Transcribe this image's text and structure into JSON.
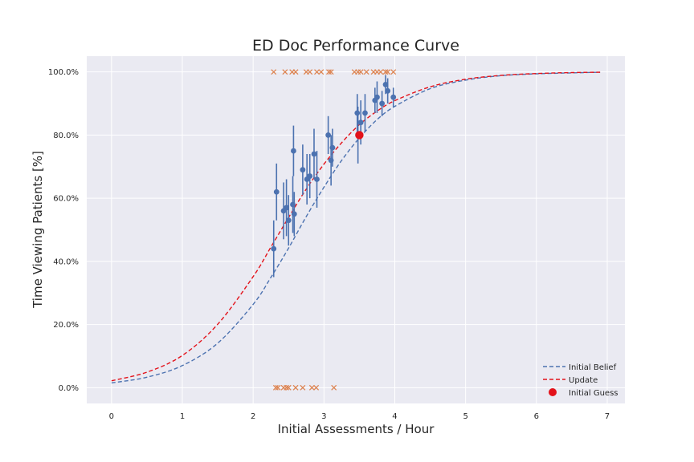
{
  "chart_data": {
    "type": "scatter",
    "title": "ED Doc Performance Curve",
    "xlabel": "Initial Assessments / Hour",
    "ylabel": "Time Viewing Patients [%]",
    "xlim": [
      -0.35,
      7.25
    ],
    "ylim": [
      -5,
      105
    ],
    "x_ticks": [
      0,
      1,
      2,
      3,
      4,
      5,
      6,
      7
    ],
    "y_ticks": [
      0,
      20,
      40,
      60,
      80,
      100
    ],
    "y_tick_labels": [
      "0.0%",
      "20.0%",
      "40.0%",
      "60.0%",
      "80.0%",
      "100.0%"
    ],
    "grid": true,
    "legend_position": "lower right",
    "series": [
      {
        "name": "Initial Belief",
        "kind": "line",
        "style": "dashed",
        "color": "#4c72b0",
        "x": [
          0,
          0.5,
          1.0,
          1.5,
          2.0,
          2.25,
          2.5,
          2.75,
          3.0,
          3.25,
          3.5,
          3.75,
          4.0,
          4.5,
          5.0,
          5.5,
          6.0,
          6.5,
          6.9
        ],
        "y": [
          1.5,
          3.3,
          7.0,
          14.1,
          26.4,
          34.9,
          44.2,
          54.2,
          63.5,
          72.0,
          79.1,
          84.9,
          89.1,
          94.7,
          97.4,
          98.8,
          99.4,
          99.7,
          99.9
        ]
      },
      {
        "name": "Update",
        "kind": "line",
        "style": "dashed",
        "color": "#e3121a",
        "x": [
          0,
          0.5,
          1.0,
          1.5,
          2.0,
          2.25,
          2.5,
          2.75,
          3.0,
          3.25,
          3.5,
          3.75,
          4.0,
          4.5,
          5.0,
          5.5,
          6.0,
          6.5,
          6.9
        ],
        "y": [
          2.2,
          4.9,
          10.2,
          20.1,
          35.2,
          44.5,
          53.9,
          62.9,
          70.8,
          77.6,
          83.3,
          87.6,
          90.9,
          95.3,
          97.7,
          98.9,
          99.5,
          99.8,
          99.9
        ]
      },
      {
        "name": "Initial Guess",
        "kind": "point",
        "color": "#e3121a",
        "x": [
          3.5
        ],
        "y": [
          80
        ]
      }
    ],
    "observed_successes_x": [
      2.29,
      2.45,
      2.55,
      2.6,
      2.75,
      2.8,
      2.9,
      2.96,
      3.07,
      3.1,
      3.43,
      3.48,
      3.52,
      3.6,
      3.7,
      3.75,
      3.8,
      3.87,
      3.9,
      3.98
    ],
    "observed_failures_x": [
      2.32,
      2.35,
      2.43,
      2.47,
      2.5,
      2.6,
      2.7,
      2.83,
      2.89,
      3.14
    ],
    "binned_points": [
      {
        "x": 2.29,
        "y": 44,
        "err": 9
      },
      {
        "x": 2.33,
        "y": 62,
        "err": 9
      },
      {
        "x": 2.43,
        "y": 56,
        "err": 9
      },
      {
        "x": 2.47,
        "y": 57,
        "err": 9
      },
      {
        "x": 2.5,
        "y": 53,
        "err": 8
      },
      {
        "x": 2.56,
        "y": 58,
        "err": 9
      },
      {
        "x": 2.57,
        "y": 75,
        "err": 8
      },
      {
        "x": 2.58,
        "y": 55,
        "err": 7
      },
      {
        "x": 2.7,
        "y": 69,
        "err": 8
      },
      {
        "x": 2.76,
        "y": 66,
        "err": 8
      },
      {
        "x": 2.8,
        "y": 67,
        "err": 7
      },
      {
        "x": 2.86,
        "y": 74,
        "err": 8
      },
      {
        "x": 2.9,
        "y": 66,
        "err": 9
      },
      {
        "x": 3.06,
        "y": 80,
        "err": 6
      },
      {
        "x": 3.1,
        "y": 72,
        "err": 8
      },
      {
        "x": 3.12,
        "y": 76,
        "err": 6
      },
      {
        "x": 3.47,
        "y": 87,
        "err": 6
      },
      {
        "x": 3.48,
        "y": 80,
        "err": 9
      },
      {
        "x": 3.52,
        "y": 84,
        "err": 7
      },
      {
        "x": 3.58,
        "y": 87,
        "err": 6
      },
      {
        "x": 3.72,
        "y": 91,
        "err": 4
      },
      {
        "x": 3.75,
        "y": 92,
        "err": 5
      },
      {
        "x": 3.82,
        "y": 90,
        "err": 4
      },
      {
        "x": 3.87,
        "y": 96,
        "err": 3
      },
      {
        "x": 3.9,
        "y": 94,
        "err": 4
      },
      {
        "x": 3.98,
        "y": 92,
        "err": 3
      }
    ],
    "colors": {
      "plot_background": "#eaeaf2",
      "grid": "#ffffff",
      "binned_points": "#4c72b0",
      "observations": "#dd8452"
    }
  }
}
